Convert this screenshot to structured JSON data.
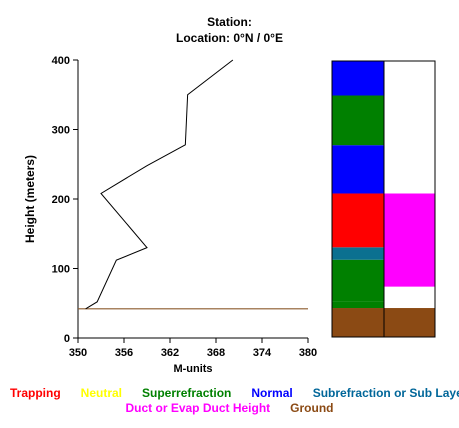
{
  "header": {
    "station_label": "Station:",
    "location_label": "Location:   0°N /   0°E"
  },
  "chart_data": {
    "type": "line",
    "title": "Station:",
    "subtitle": "Location:   0°N /   0°E",
    "xlabel": "M-units",
    "ylabel": "Height (meters)",
    "xlim": [
      350,
      380
    ],
    "ylim": [
      0,
      400
    ],
    "xticks": [
      350,
      356,
      362,
      368,
      374,
      380
    ],
    "yticks": [
      0,
      100,
      200,
      300,
      400
    ],
    "grid": false,
    "series": [
      {
        "color": "#000000",
        "x": [
          351.0,
          352.5,
          355.0,
          359.0,
          353.0,
          359.0,
          364.0,
          364.3,
          370.2
        ],
        "y": [
          42,
          52,
          112,
          130,
          208,
          248,
          278,
          350,
          400
        ]
      }
    ],
    "ground_line": {
      "y": 42,
      "color": "#8b5a2b"
    },
    "condition_bars": {
      "columns": [
        {
          "segments": [
            {
              "from": 0,
              "to": 42,
              "type": "Ground"
            },
            {
              "from": 42,
              "to": 52,
              "type": "Superrefraction"
            },
            {
              "from": 52,
              "to": 112,
              "type": "Superrefraction"
            },
            {
              "from": 112,
              "to": 130,
              "type": "Subrefraction or Sub Layer"
            },
            {
              "from": 130,
              "to": 208,
              "type": "Trapping"
            },
            {
              "from": 208,
              "to": 278,
              "type": "Normal"
            },
            {
              "from": 278,
              "to": 350,
              "type": "Superrefraction"
            },
            {
              "from": 350,
              "to": 400,
              "type": "Normal"
            }
          ]
        },
        {
          "segments": [
            {
              "from": 0,
              "to": 42,
              "type": "Ground"
            },
            {
              "from": 42,
              "to": 73,
              "type": "None"
            },
            {
              "from": 73,
              "to": 208,
              "type": "Duct or Evap Duct Height"
            },
            {
              "from": 208,
              "to": 400,
              "type": "None"
            }
          ]
        }
      ]
    }
  },
  "legend": {
    "row1": [
      {
        "label": "Trapping",
        "color": "#ff0000"
      },
      {
        "label": "Neutral",
        "color": "#ffff00"
      },
      {
        "label": "Superrefraction",
        "color": "#008000"
      },
      {
        "label": "Normal",
        "color": "#0000ff"
      },
      {
        "label": "Subrefraction or Sub Layer",
        "color": "#006699"
      }
    ],
    "row2": [
      {
        "label": "Duct or Evap Duct Height",
        "color": "#ff00ff"
      },
      {
        "label": "Ground",
        "color": "#8b4a14"
      }
    ]
  },
  "colors": {
    "Trapping": "#ff0000",
    "Neutral": "#ffff00",
    "Superrefraction": "#008000",
    "Normal": "#0000ff",
    "Subrefraction or Sub Layer": "#0b7090",
    "Duct or Evap Duct Height": "#ff00ff",
    "Ground": "#8b4a14",
    "None": "#ffffff"
  }
}
